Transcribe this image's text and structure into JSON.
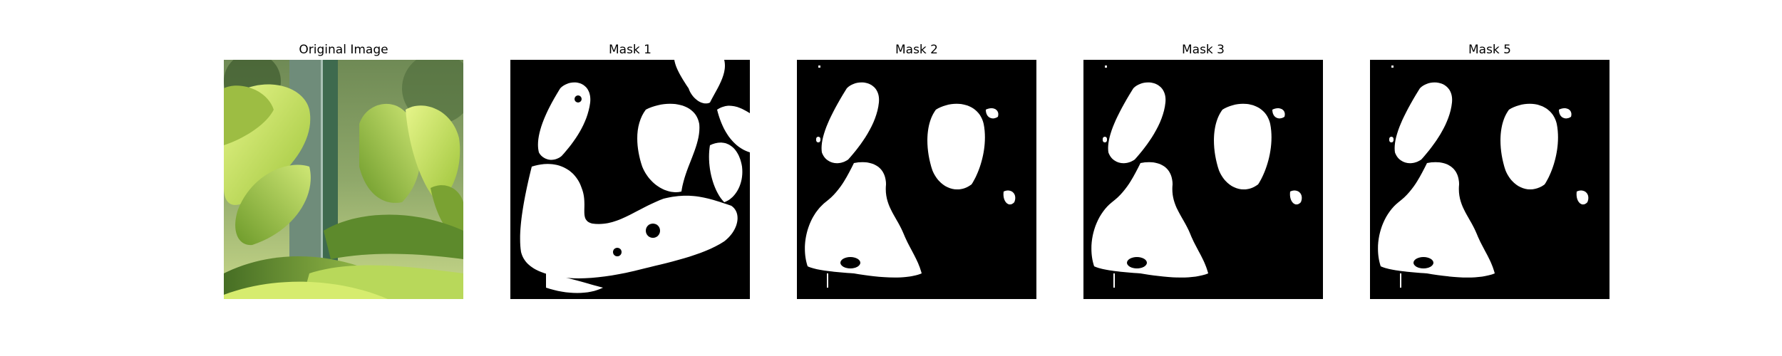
{
  "figure": {
    "panels": [
      {
        "title": "Original Image",
        "kind": "photo"
      },
      {
        "title": "Mask 1",
        "kind": "mask"
      },
      {
        "title": "Mask 2",
        "kind": "mask"
      },
      {
        "title": "Mask 3",
        "kind": "mask"
      },
      {
        "title": "Mask 5",
        "kind": "mask"
      }
    ],
    "colors": {
      "mask_background": "#000000",
      "mask_foreground": "#ffffff",
      "leaf_light": "#d8f06a",
      "leaf_mid": "#a6cc3c",
      "leaf_dark": "#4f7a22",
      "pole": "#5f7a62"
    }
  }
}
